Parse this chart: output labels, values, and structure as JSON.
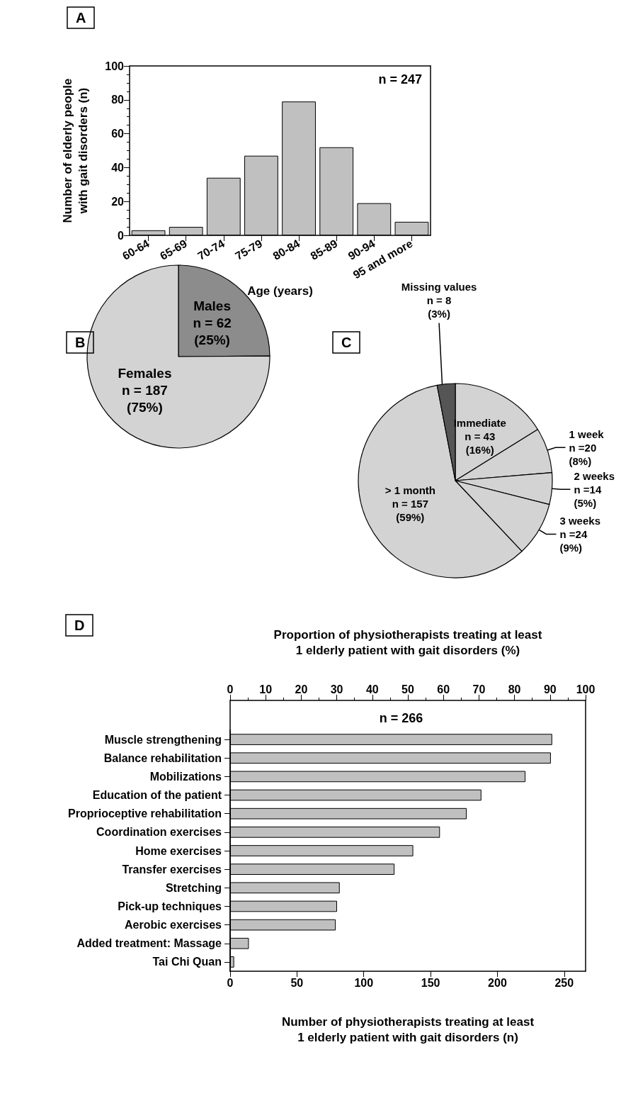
{
  "chart_data": [
    {
      "type": "bar",
      "title": "A",
      "categories": [
        "60-64",
        "65-69",
        "70-74",
        "75-79",
        "80-84",
        "85-89",
        "90-94",
        "95 and more"
      ],
      "values": [
        3,
        5,
        34,
        47,
        79,
        52,
        19,
        8
      ],
      "color": "#c0c0c0",
      "ylim": [
        0,
        100
      ],
      "yticks": [
        0,
        20,
        40,
        60,
        80,
        100
      ],
      "xlabel": "Age (years)",
      "ylabel": "Number of elderly people\nwith gait disorders (n)",
      "annotations": [
        "n = 247"
      ],
      "grid": false,
      "legend": false
    },
    {
      "type": "pie",
      "title": "B",
      "categories": [
        "Males",
        "Females"
      ],
      "values": [
        62,
        187
      ],
      "value_labels": [
        "n = 62\n(25%)",
        "n = 187\n(75%)"
      ],
      "colors": [
        "#8c8c8c",
        "#d3d3d3"
      ],
      "legend": false
    },
    {
      "type": "pie",
      "title": "C",
      "categories": [
        "Immediate",
        "1 week",
        "2 weeks",
        "3 weeks",
        "> 1 month",
        "Missing values"
      ],
      "values": [
        43,
        20,
        14,
        24,
        157,
        8
      ],
      "value_labels": [
        "n = 43\n(16%)",
        "n =20\n(8%)",
        "n =14\n(5%)",
        "n =24\n(9%)",
        "n = 157\n(59%)",
        "n = 8\n(3%)"
      ],
      "colors": [
        "#d3d3d3",
        "#d3d3d3",
        "#d3d3d3",
        "#d3d3d3",
        "#d3d3d3",
        "#555555"
      ],
      "legend": false
    },
    {
      "type": "bar",
      "orientation": "horizontal",
      "title": "D",
      "categories": [
        "Muscle strengthening",
        "Balance rehabilitation",
        "Mobilizations",
        "Education of the patient",
        "Proprioceptive rehabilitation",
        "Coordination exercises",
        "Home exercises",
        "Transfer exercises",
        "Stretching",
        "Pick-up techniques",
        "Aerobic exercises",
        "Added treatment: Massage",
        "Tai Chi Quan"
      ],
      "values": [
        241,
        240,
        221,
        188,
        177,
        157,
        137,
        123,
        82,
        80,
        79,
        14,
        3
      ],
      "color": "#c0c0c0",
      "xlim": [
        0,
        266
      ],
      "xticks": [
        0,
        50,
        100,
        150,
        200,
        250
      ],
      "xlabel": "Number of physiotherapists treating at least\n1 elderly patient with gait disorders (n)",
      "x2lim": [
        0,
        100
      ],
      "x2ticks": [
        0,
        10,
        20,
        30,
        40,
        50,
        60,
        70,
        80,
        90,
        100
      ],
      "x2label": "Proportion of physiotherapists treating at least\n1 elderly patient with gait disorders (%)",
      "annotations": [
        "n = 266"
      ],
      "grid": false,
      "legend": false
    }
  ]
}
